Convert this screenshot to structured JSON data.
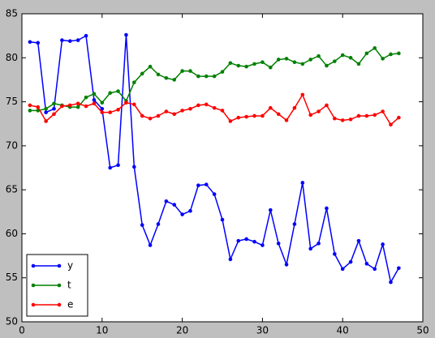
{
  "chart_data": {
    "type": "line",
    "x": [
      1,
      2,
      3,
      4,
      5,
      6,
      7,
      8,
      9,
      10,
      11,
      12,
      13,
      14,
      15,
      16,
      17,
      18,
      19,
      20,
      21,
      22,
      23,
      24,
      25,
      26,
      27,
      28,
      29,
      30,
      31,
      32,
      33,
      34,
      35,
      36,
      37,
      38,
      39,
      40,
      41,
      42,
      43,
      44,
      45,
      46,
      47
    ],
    "series": [
      {
        "name": "y",
        "color": "#0000ff",
        "values": [
          81.8,
          81.7,
          73.8,
          74.2,
          82.0,
          81.9,
          82.0,
          82.5,
          75.2,
          74.2,
          67.5,
          67.8,
          82.6,
          67.6,
          61.0,
          58.7,
          61.1,
          63.7,
          63.3,
          62.2,
          62.6,
          65.5,
          65.6,
          64.5,
          61.6,
          57.1,
          59.2,
          59.4,
          59.1,
          58.7,
          62.7,
          58.9,
          56.5,
          61.1,
          65.8,
          58.3,
          58.9,
          62.9,
          57.7,
          56.0,
          56.8,
          59.2,
          56.6,
          56.0,
          58.8,
          54.5,
          56.1
        ]
      },
      {
        "name": "t",
        "color": "#008000",
        "values": [
          74.0,
          74.0,
          74.2,
          74.8,
          74.6,
          74.4,
          74.4,
          75.5,
          75.9,
          74.9,
          76.0,
          76.2,
          75.1,
          77.2,
          78.2,
          79.0,
          78.1,
          77.7,
          77.5,
          78.5,
          78.5,
          77.9,
          77.9,
          77.9,
          78.4,
          79.4,
          79.1,
          79.0,
          79.3,
          79.5,
          78.9,
          79.8,
          79.9,
          79.5,
          79.3,
          79.8,
          80.2,
          79.1,
          79.6,
          80.3,
          80.0,
          79.3,
          80.5,
          81.1,
          79.9,
          80.4,
          80.5
        ]
      },
      {
        "name": "e",
        "color": "#ff0000",
        "values": [
          74.6,
          74.4,
          72.8,
          73.6,
          74.5,
          74.6,
          74.8,
          74.5,
          74.8,
          73.8,
          73.8,
          74.1,
          74.9,
          74.7,
          73.4,
          73.1,
          73.4,
          73.9,
          73.6,
          74.0,
          74.2,
          74.6,
          74.7,
          74.3,
          74.0,
          72.8,
          73.2,
          73.3,
          73.4,
          73.4,
          74.3,
          73.6,
          72.9,
          74.3,
          75.8,
          73.5,
          73.9,
          74.6,
          73.1,
          72.9,
          73.0,
          73.4,
          73.4,
          73.5,
          73.9,
          72.4,
          73.2
        ]
      }
    ],
    "xlim": [
      0,
      50
    ],
    "xticks": [
      0,
      10,
      20,
      30,
      40,
      50
    ],
    "ylim": [
      50,
      85
    ],
    "yticks": [
      50,
      55,
      60,
      65,
      70,
      75,
      80,
      85
    ],
    "legend": "lower left"
  }
}
